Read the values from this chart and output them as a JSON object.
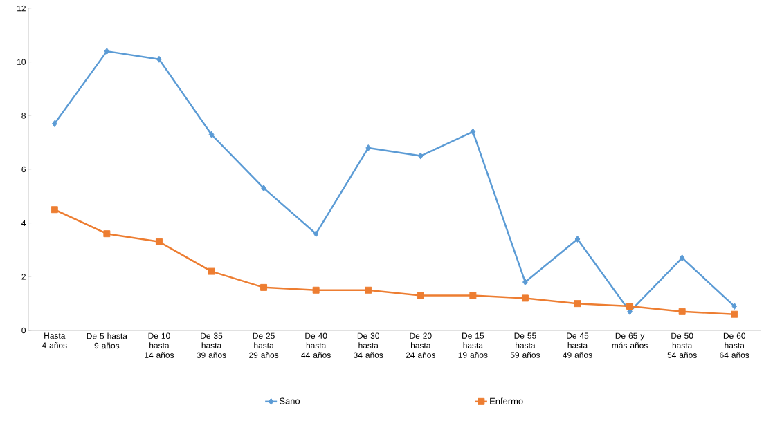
{
  "chart_data": {
    "type": "line",
    "categories": [
      "Hasta 4 años",
      "De 5 hasta 9 años",
      "De 10 hasta 14 años",
      "De 35 hasta 39 años",
      "De 25 hasta 29 años",
      "De 40 hasta 44 años",
      "De 30 hasta 34 años",
      "De 20 hasta 24 años",
      "De 15 hasta 19 años",
      "De 55 hasta 59 años",
      "De 45 hasta 49 años",
      "De 65 y más años",
      "De 50 hasta 54 años",
      "De 60 hasta 64 años"
    ],
    "series": [
      {
        "name": "Sano",
        "color": "#5b9bd5",
        "marker": "diamond",
        "values": [
          7.7,
          10.4,
          10.1,
          7.3,
          5.3,
          3.6,
          6.8,
          6.5,
          7.4,
          1.8,
          3.4,
          0.7,
          2.7,
          0.9
        ]
      },
      {
        "name": "Enfermo",
        "color": "#ed7d31",
        "marker": "square",
        "values": [
          4.5,
          3.6,
          3.3,
          2.2,
          1.6,
          1.5,
          1.5,
          1.3,
          1.3,
          1.2,
          1.0,
          0.9,
          0.7,
          0.6
        ]
      }
    ],
    "ylim": [
      0,
      12
    ],
    "yticks": [
      0,
      2,
      4,
      6,
      8,
      10,
      12
    ],
    "grid": false,
    "legend": "bottom"
  }
}
